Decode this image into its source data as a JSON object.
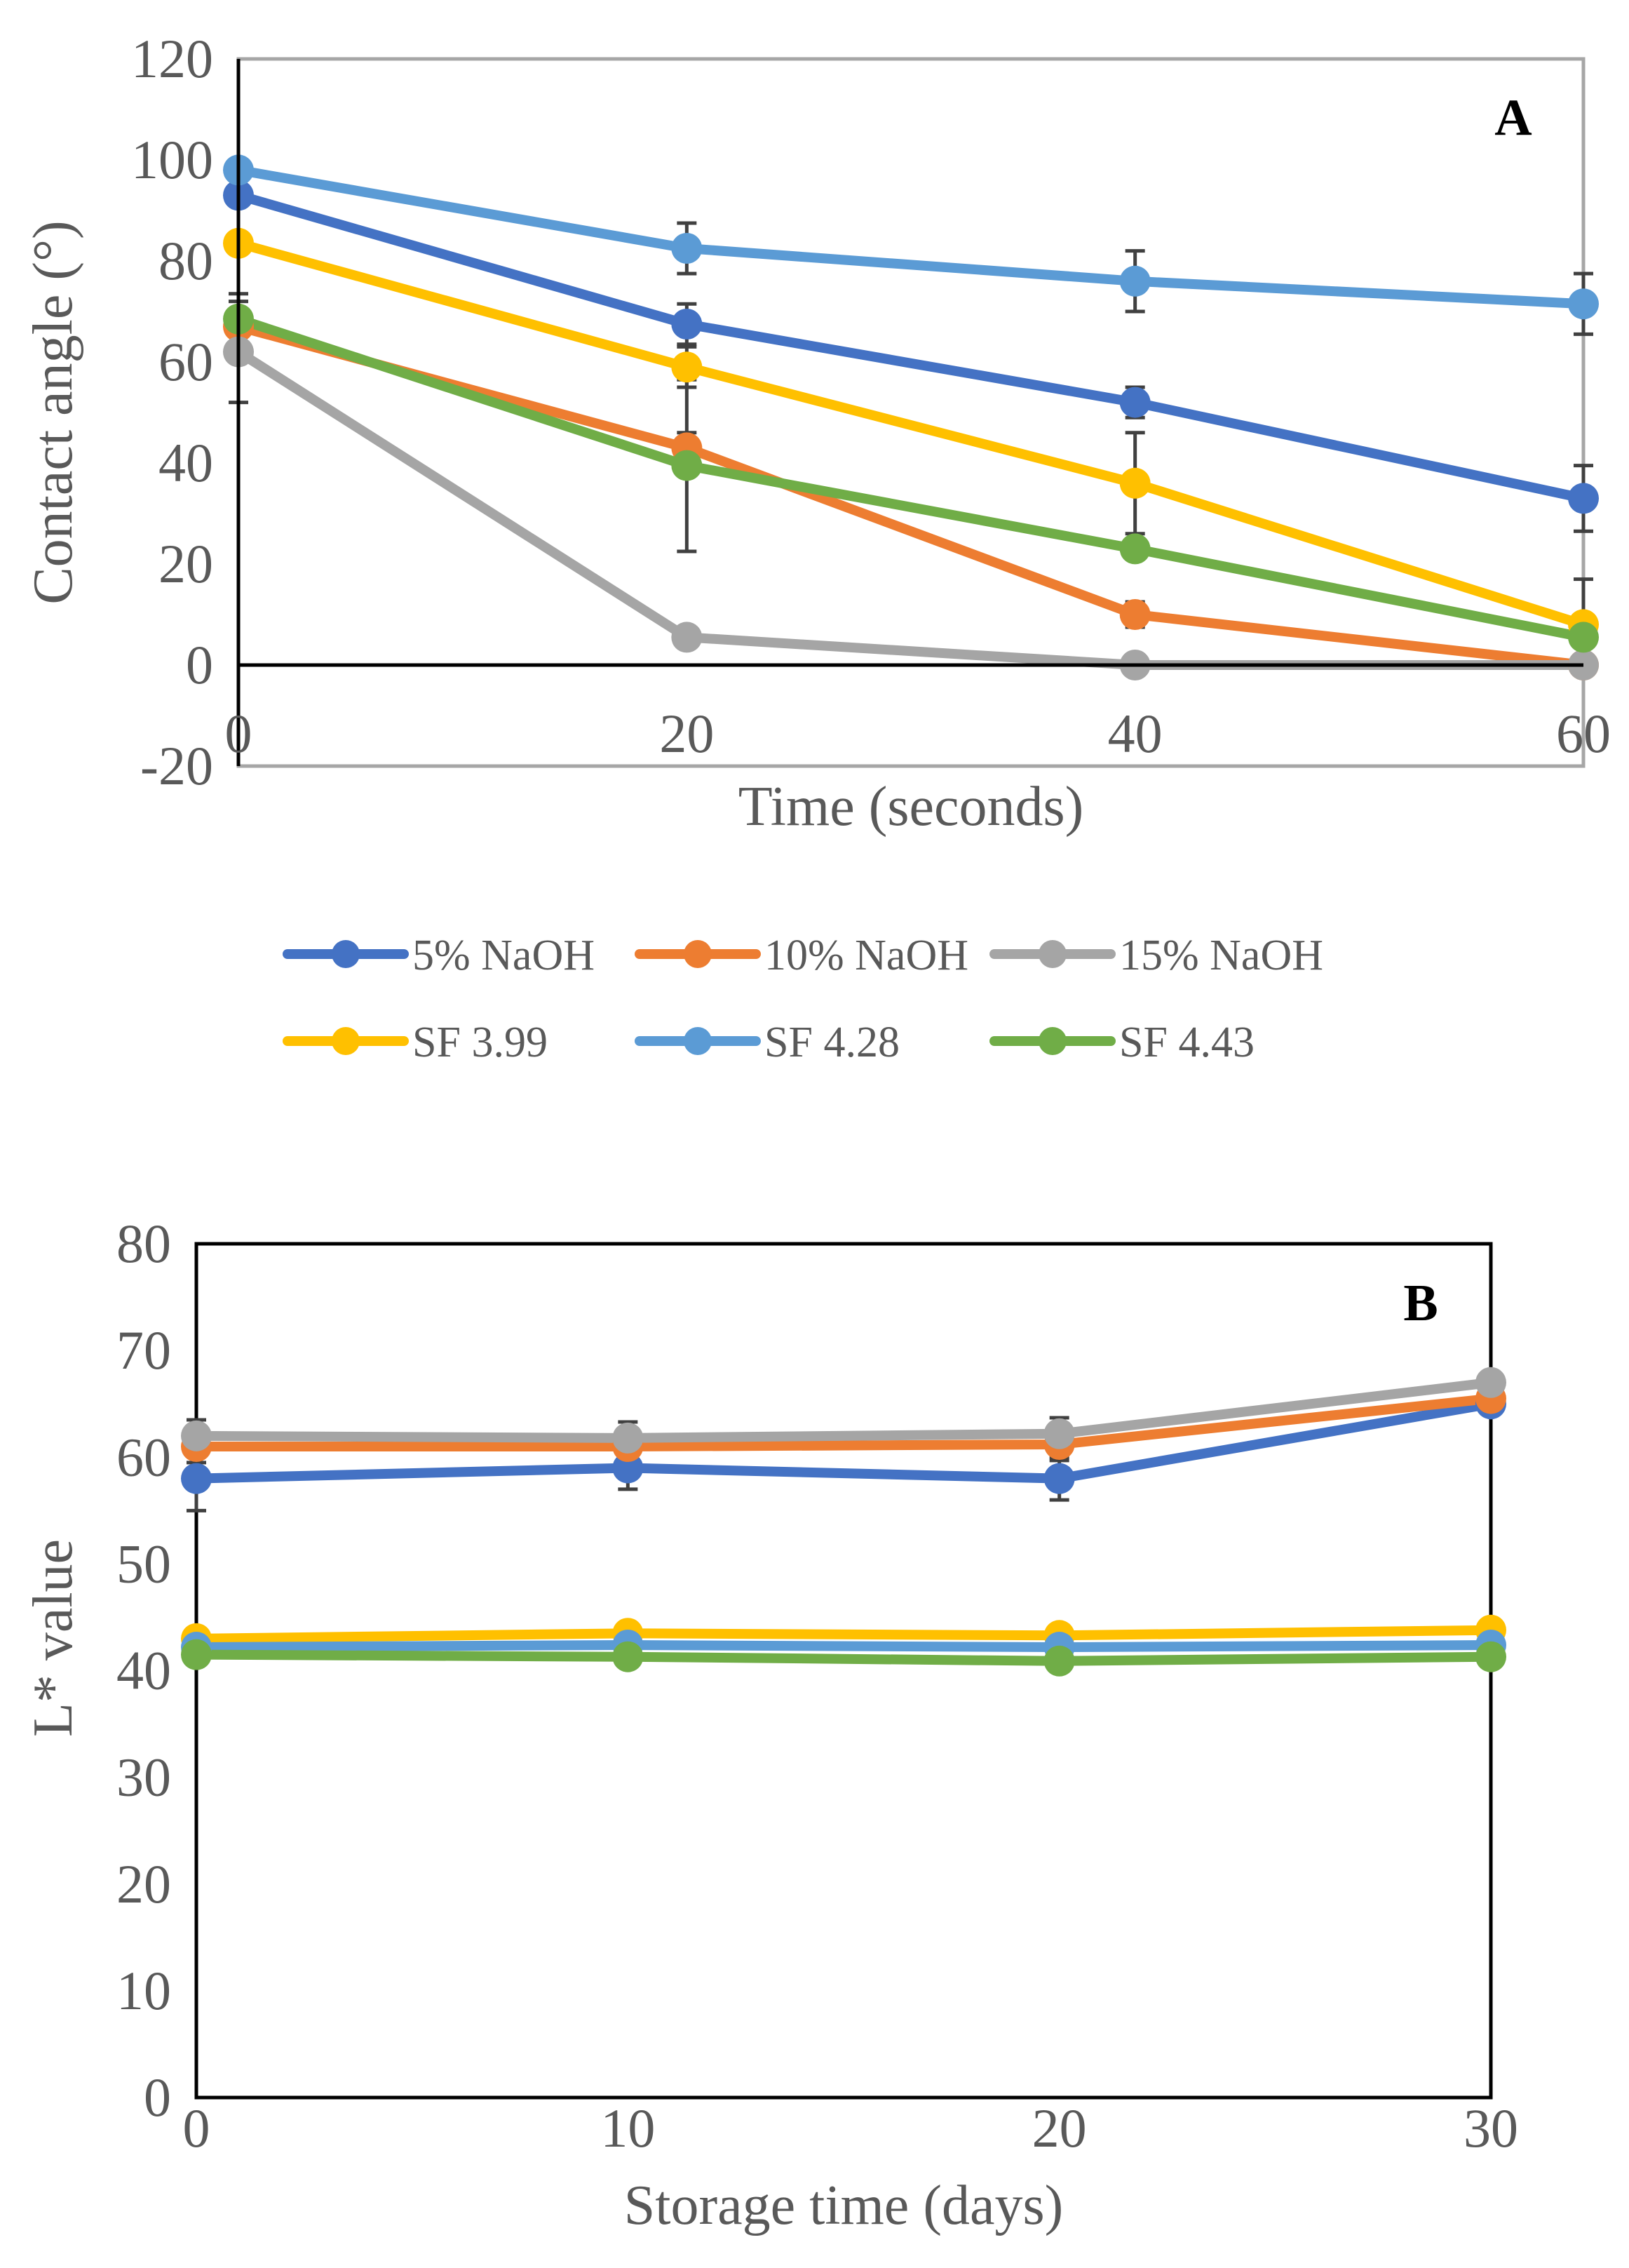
{
  "chart_data": [
    {
      "type": "line",
      "panel_label": "A",
      "title": "",
      "xlabel": "Time (seconds)",
      "ylabel": "Contact angle (°)",
      "xlim": [
        0,
        60
      ],
      "ylim": [
        -20,
        120
      ],
      "x_ticks": [
        "0",
        "20",
        "40",
        "60"
      ],
      "y_ticks": [
        "-20",
        "0",
        "20",
        "40",
        "60",
        "80",
        "100",
        "120"
      ],
      "x": [
        0,
        20,
        40,
        60
      ],
      "grid": false,
      "legend_position": "bottom",
      "series": [
        {
          "name": "5% NaOH",
          "color": "#4472C4",
          "values": [
            93,
            67.5,
            52,
            33
          ],
          "errors": [
            0,
            4,
            3,
            6.5
          ]
        },
        {
          "name": "10% NaOH",
          "color": "#ED7D31",
          "values": [
            67,
            43,
            10,
            0
          ],
          "errors": [
            0,
            3,
            2.5,
            0
          ]
        },
        {
          "name": "15% NaOH",
          "color": "#A5A5A5",
          "values": [
            62,
            5.5,
            0,
            0
          ],
          "errors": [
            10,
            0,
            0,
            0
          ]
        },
        {
          "name": "SF 3.99",
          "color": "#FFC000",
          "values": [
            83.5,
            59,
            36,
            8
          ],
          "errors": [
            0,
            4,
            10,
            9
          ]
        },
        {
          "name": "SF 4.28",
          "color": "#5B9BD5",
          "values": [
            98,
            82.5,
            76,
            71.5
          ],
          "errors": [
            0,
            5,
            6,
            6
          ]
        },
        {
          "name": "SF 4.43",
          "color": "#70AD47",
          "values": [
            68.5,
            39.5,
            23,
            5.5
          ],
          "errors": [
            5,
            17,
            0,
            0
          ]
        }
      ]
    },
    {
      "type": "line",
      "panel_label": "B",
      "title": "",
      "xlabel": "Storage time (days)",
      "ylabel": "L* value",
      "xlim": [
        0,
        30
      ],
      "ylim": [
        0,
        80
      ],
      "x_ticks": [
        "0",
        "10",
        "20",
        "30"
      ],
      "y_ticks": [
        "0",
        "10",
        "20",
        "30",
        "40",
        "50",
        "60",
        "70",
        "80"
      ],
      "x": [
        0,
        10,
        20,
        30
      ],
      "grid": false,
      "series": [
        {
          "name": "5% NaOH",
          "color": "#4472C4",
          "values": [
            58,
            59,
            58,
            65
          ],
          "errors": [
            3,
            2,
            2,
            0
          ]
        },
        {
          "name": "10% NaOH",
          "color": "#ED7D31",
          "values": [
            61,
            61,
            61.2,
            65.5
          ],
          "errors": [
            1.5,
            1.5,
            1.5,
            0
          ]
        },
        {
          "name": "15% NaOH",
          "color": "#A5A5A5",
          "values": [
            62,
            61.8,
            62.2,
            67
          ],
          "errors": [
            1.5,
            1.5,
            1.5,
            0
          ]
        },
        {
          "name": "SF 3.99",
          "color": "#FFC000",
          "values": [
            43,
            43.5,
            43.3,
            43.8
          ],
          "errors": [
            0,
            0,
            0,
            0
          ]
        },
        {
          "name": "SF 4.28",
          "color": "#5B9BD5",
          "values": [
            42.2,
            42.4,
            42.2,
            42.4
          ],
          "errors": [
            0,
            0,
            0,
            0
          ]
        },
        {
          "name": "SF 4.43",
          "color": "#70AD47",
          "values": [
            41.5,
            41.3,
            40.9,
            41.3
          ],
          "errors": [
            0,
            0,
            0,
            0
          ]
        }
      ]
    }
  ]
}
